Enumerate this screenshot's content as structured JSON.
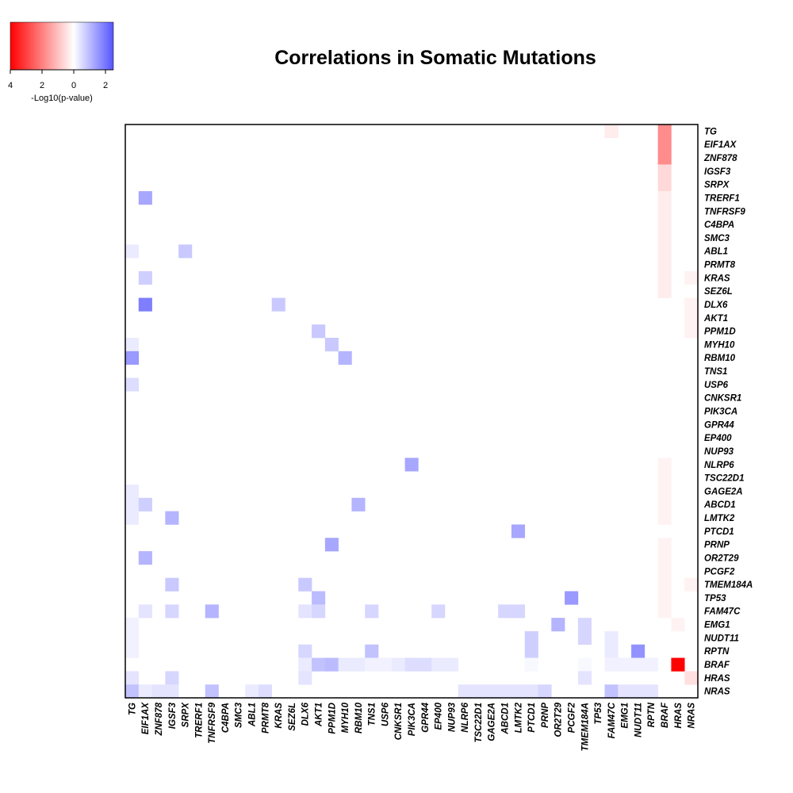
{
  "chart_data": {
    "type": "heatmap",
    "title": "Correlations in Somatic Mutations",
    "genes": [
      "TG",
      "EIF1AX",
      "ZNF878",
      "IGSF3",
      "SRPX",
      "TRERF1",
      "TNFRSF9",
      "C4BPA",
      "SMC3",
      "ABL1",
      "PRMT8",
      "KRAS",
      "SEZ6L",
      "DLX6",
      "AKT1",
      "PPM1D",
      "MYH10",
      "RBM10",
      "TNS1",
      "USP6",
      "CNKSR1",
      "PIK3CA",
      "GPR44",
      "EP400",
      "NUP93",
      "NLRP6",
      "TSC22D1",
      "GAGE2A",
      "ABCD1",
      "LMTK2",
      "PTCD1",
      "PRNP",
      "OR2T29",
      "PCGF2",
      "TMEM184A",
      "TP53",
      "FAM47C",
      "EMG1",
      "NUDT11",
      "RPTN",
      "BRAF",
      "HRAS",
      "NRAS"
    ],
    "value_meaning": "positive = red (strength 4 = full red), negative = blue (strength 2.5 = full blue); magnitude is -Log10(p-value)",
    "cells": [
      {
        "row": "TG",
        "col": "FAM47C",
        "value": 0.3
      },
      {
        "row": "TG",
        "col": "BRAF",
        "value": 1.8
      },
      {
        "row": "EIF1AX",
        "col": "BRAF",
        "value": 1.8
      },
      {
        "row": "ZNF878",
        "col": "BRAF",
        "value": 1.8
      },
      {
        "row": "IGSF3",
        "col": "BRAF",
        "value": 0.6
      },
      {
        "row": "SRPX",
        "col": "BRAF",
        "value": 0.6
      },
      {
        "row": "TRERF1",
        "col": "BRAF",
        "value": 0.3
      },
      {
        "row": "TNFRSF9",
        "col": "BRAF",
        "value": 0.3
      },
      {
        "row": "C4BPA",
        "col": "BRAF",
        "value": 0.3
      },
      {
        "row": "SMC3",
        "col": "BRAF",
        "value": 0.3
      },
      {
        "row": "ABL1",
        "col": "BRAF",
        "value": 0.3
      },
      {
        "row": "PRMT8",
        "col": "BRAF",
        "value": 0.3
      },
      {
        "row": "KRAS",
        "col": "BRAF",
        "value": 0.3
      },
      {
        "row": "SEZ6L",
        "col": "BRAF",
        "value": 0.3
      },
      {
        "row": "KRAS",
        "col": "NRAS",
        "value": 0.2
      },
      {
        "row": "DLX6",
        "col": "NRAS",
        "value": 0.2
      },
      {
        "row": "AKT1",
        "col": "NRAS",
        "value": 0.2
      },
      {
        "row": "PPM1D",
        "col": "NRAS",
        "value": 0.2
      },
      {
        "row": "TRERF1",
        "col": "EIF1AX",
        "value": -1.3
      },
      {
        "row": "ABL1",
        "col": "TG",
        "value": -0.3
      },
      {
        "row": "ABL1",
        "col": "SRPX",
        "value": -0.8
      },
      {
        "row": "KRAS",
        "col": "EIF1AX",
        "value": -0.7
      },
      {
        "row": "DLX6",
        "col": "EIF1AX",
        "value": -1.9
      },
      {
        "row": "DLX6",
        "col": "KRAS",
        "value": -0.8
      },
      {
        "row": "PPM1D",
        "col": "AKT1",
        "value": -0.8
      },
      {
        "row": "MYH10",
        "col": "TG",
        "value": -0.3
      },
      {
        "row": "MYH10",
        "col": "PPM1D",
        "value": -0.8
      },
      {
        "row": "RBM10",
        "col": "TG",
        "value": -1.5
      },
      {
        "row": "RBM10",
        "col": "MYH10",
        "value": -1.1
      },
      {
        "row": "USP6",
        "col": "TG",
        "value": -0.5
      },
      {
        "row": "NLRP6",
        "col": "PIK3CA",
        "value": -1.3
      },
      {
        "row": "NLRP6",
        "col": "BRAF",
        "value": 0.2
      },
      {
        "row": "TSC22D1",
        "col": "BRAF",
        "value": 0.2
      },
      {
        "row": "GAGE2A",
        "col": "BRAF",
        "value": 0.2
      },
      {
        "row": "ABCD1",
        "col": "BRAF",
        "value": 0.2
      },
      {
        "row": "LMTK2",
        "col": "BRAF",
        "value": 0.2
      },
      {
        "row": "GAGE2A",
        "col": "TG",
        "value": -0.3
      },
      {
        "row": "ABCD1",
        "col": "TG",
        "value": -0.3
      },
      {
        "row": "ABCD1",
        "col": "EIF1AX",
        "value": -0.7
      },
      {
        "row": "ABCD1",
        "col": "RBM10",
        "value": -1.1
      },
      {
        "row": "LMTK2",
        "col": "TG",
        "value": -0.3
      },
      {
        "row": "LMTK2",
        "col": "IGSF3",
        "value": -1.1
      },
      {
        "row": "PTCD1",
        "col": "LMTK2",
        "value": -1.3
      },
      {
        "row": "PRNP",
        "col": "PPM1D",
        "value": -1.3
      },
      {
        "row": "PRNP",
        "col": "BRAF",
        "value": 0.2
      },
      {
        "row": "OR2T29",
        "col": "EIF1AX",
        "value": -1.1
      },
      {
        "row": "OR2T29",
        "col": "BRAF",
        "value": 0.2
      },
      {
        "row": "PCGF2",
        "col": "BRAF",
        "value": 0.2
      },
      {
        "row": "TMEM184A",
        "col": "IGSF3",
        "value": -0.8
      },
      {
        "row": "TMEM184A",
        "col": "DLX6",
        "value": -0.8
      },
      {
        "row": "TMEM184A",
        "col": "BRAF",
        "value": 0.2
      },
      {
        "row": "TMEM184A",
        "col": "NRAS",
        "value": 0.2
      },
      {
        "row": "TP53",
        "col": "AKT1",
        "value": -1.0
      },
      {
        "row": "TP53",
        "col": "PCGF2",
        "value": -1.5
      },
      {
        "row": "TP53",
        "col": "BRAF",
        "value": 0.2
      },
      {
        "row": "FAM47C",
        "col": "EIF1AX",
        "value": -0.4
      },
      {
        "row": "FAM47C",
        "col": "IGSF3",
        "value": -0.6
      },
      {
        "row": "FAM47C",
        "col": "TNFRSF9",
        "value": -1.1
      },
      {
        "row": "FAM47C",
        "col": "DLX6",
        "value": -0.4
      },
      {
        "row": "FAM47C",
        "col": "AKT1",
        "value": -0.6
      },
      {
        "row": "FAM47C",
        "col": "TNS1",
        "value": -0.6
      },
      {
        "row": "FAM47C",
        "col": "EP400",
        "value": -0.6
      },
      {
        "row": "FAM47C",
        "col": "ABCD1",
        "value": -0.6
      },
      {
        "row": "FAM47C",
        "col": "LMTK2",
        "value": -0.6
      },
      {
        "row": "FAM47C",
        "col": "BRAF",
        "value": 0.2
      },
      {
        "row": "EMG1",
        "col": "TG",
        "value": -0.2
      },
      {
        "row": "EMG1",
        "col": "OR2T29",
        "value": -1.1
      },
      {
        "row": "EMG1",
        "col": "TMEM184A",
        "value": -0.6
      },
      {
        "row": "EMG1",
        "col": "HRAS",
        "value": 0.2
      },
      {
        "row": "NUDT11",
        "col": "TG",
        "value": -0.2
      },
      {
        "row": "NUDT11",
        "col": "PTCD1",
        "value": -0.7
      },
      {
        "row": "NUDT11",
        "col": "TMEM184A",
        "value": -0.6
      },
      {
        "row": "NUDT11",
        "col": "FAM47C",
        "value": -0.3
      },
      {
        "row": "RPTN",
        "col": "TG",
        "value": -0.2
      },
      {
        "row": "RPTN",
        "col": "DLX6",
        "value": -0.6
      },
      {
        "row": "RPTN",
        "col": "TNS1",
        "value": -0.9
      },
      {
        "row": "RPTN",
        "col": "PTCD1",
        "value": -0.7
      },
      {
        "row": "RPTN",
        "col": "FAM47C",
        "value": -0.3
      },
      {
        "row": "RPTN",
        "col": "NUDT11",
        "value": -1.6
      },
      {
        "row": "BRAF",
        "col": "DLX6",
        "value": -0.3
      },
      {
        "row": "BRAF",
        "col": "AKT1",
        "value": -0.9
      },
      {
        "row": "BRAF",
        "col": "PPM1D",
        "value": -1.0
      },
      {
        "row": "BRAF",
        "col": "MYH10",
        "value": -0.3
      },
      {
        "row": "BRAF",
        "col": "RBM10",
        "value": -0.3
      },
      {
        "row": "BRAF",
        "col": "TNS1",
        "value": -0.2
      },
      {
        "row": "BRAF",
        "col": "USP6",
        "value": -0.2
      },
      {
        "row": "BRAF",
        "col": "CNKSR1",
        "value": -0.3
      },
      {
        "row": "BRAF",
        "col": "PIK3CA",
        "value": -0.5
      },
      {
        "row": "BRAF",
        "col": "GPR44",
        "value": -0.5
      },
      {
        "row": "BRAF",
        "col": "EP400",
        "value": -0.3
      },
      {
        "row": "BRAF",
        "col": "NUP93",
        "value": -0.3
      },
      {
        "row": "BRAF",
        "col": "PTCD1",
        "value": -0.1
      },
      {
        "row": "BRAF",
        "col": "TMEM184A",
        "value": -0.1
      },
      {
        "row": "BRAF",
        "col": "FAM47C",
        "value": -0.2
      },
      {
        "row": "BRAF",
        "col": "EMG1",
        "value": -0.2
      },
      {
        "row": "BRAF",
        "col": "NUDT11",
        "value": -0.2
      },
      {
        "row": "BRAF",
        "col": "RPTN",
        "value": -0.2
      },
      {
        "row": "BRAF",
        "col": "HRAS",
        "value": 4.0
      },
      {
        "row": "HRAS",
        "col": "TG",
        "value": -0.4
      },
      {
        "row": "HRAS",
        "col": "DLX6",
        "value": -0.4
      },
      {
        "row": "HRAS",
        "col": "IGSF3",
        "value": -0.6
      },
      {
        "row": "HRAS",
        "col": "TMEM184A",
        "value": -0.4
      },
      {
        "row": "HRAS",
        "col": "NRAS",
        "value": 0.5
      },
      {
        "row": "NRAS",
        "col": "TG",
        "value": -0.9
      },
      {
        "row": "NRAS",
        "col": "EIF1AX",
        "value": -0.3
      },
      {
        "row": "NRAS",
        "col": "ZNF878",
        "value": -0.4
      },
      {
        "row": "NRAS",
        "col": "IGSF3",
        "value": -0.4
      },
      {
        "row": "NRAS",
        "col": "TNFRSF9",
        "value": -0.9
      },
      {
        "row": "NRAS",
        "col": "ABL1",
        "value": -0.3
      },
      {
        "row": "NRAS",
        "col": "PRMT8",
        "value": -0.5
      },
      {
        "row": "NRAS",
        "col": "NLRP6",
        "value": -0.4
      },
      {
        "row": "NRAS",
        "col": "TSC22D1",
        "value": -0.4
      },
      {
        "row": "NRAS",
        "col": "GAGE2A",
        "value": -0.4
      },
      {
        "row": "NRAS",
        "col": "ABCD1",
        "value": -0.4
      },
      {
        "row": "NRAS",
        "col": "LMTK2",
        "value": -0.4
      },
      {
        "row": "NRAS",
        "col": "PTCD1",
        "value": -0.4
      },
      {
        "row": "NRAS",
        "col": "PRNP",
        "value": -0.6
      },
      {
        "row": "NRAS",
        "col": "FAM47C",
        "value": -0.9
      },
      {
        "row": "NRAS",
        "col": "EMG1",
        "value": -0.4
      },
      {
        "row": "NRAS",
        "col": "NUDT11",
        "value": -0.4
      },
      {
        "row": "NRAS",
        "col": "RPTN",
        "value": -0.4
      }
    ],
    "legend": {
      "label": "-Log10(p-value)",
      "ticks": [
        "4",
        "2",
        "0",
        "2"
      ],
      "red_max": 4,
      "blue_max": 2.5
    },
    "colors": {
      "positive": "#ff0000",
      "negative": "#5555ff",
      "neutral": "#ffffff",
      "border": "#000000"
    }
  }
}
